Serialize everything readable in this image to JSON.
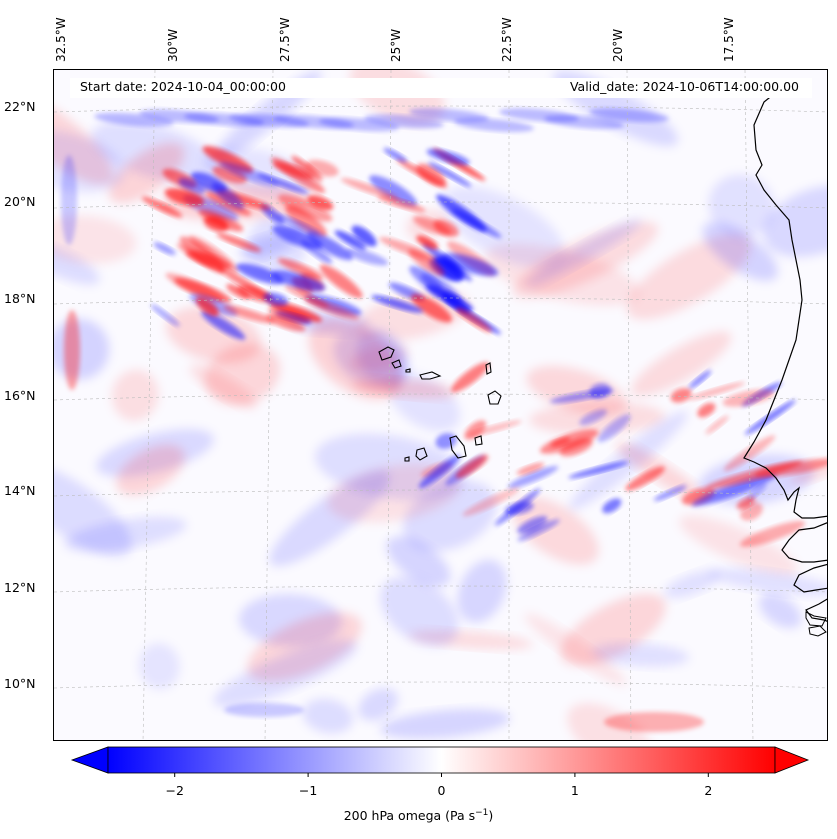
{
  "map": {
    "start_date": "Start date: 2024-10-04_00:00:00",
    "valid_date": "Valid_date: 2024-10-06T14:00:00.00",
    "lon_labels": [
      "32.5°W",
      "30°W",
      "27.5°W",
      "25°W",
      "22.5°W",
      "20°W",
      "17.5°W"
    ],
    "lat_labels": [
      "22°N",
      "20°N",
      "18°N",
      "16°N",
      "14°N",
      "12°N",
      "10°N"
    ],
    "gridlines": true
  },
  "colorbar": {
    "label": "200 hPa omega (Pa s",
    "label_exponent": "−1",
    "label_close": ")",
    "ticks": [
      "−2",
      "−1",
      "0",
      "1",
      "2"
    ],
    "tick_values": [
      -2,
      -1,
      0,
      1,
      2
    ],
    "range": [
      -2.5,
      2.5
    ],
    "extend": "both",
    "colors": {
      "negative": "#0000ff",
      "zero": "#ffffff",
      "positive": "#ff0000"
    }
  },
  "colors": {
    "coastline": "#000000",
    "gridline": "#bbbbbb"
  }
}
